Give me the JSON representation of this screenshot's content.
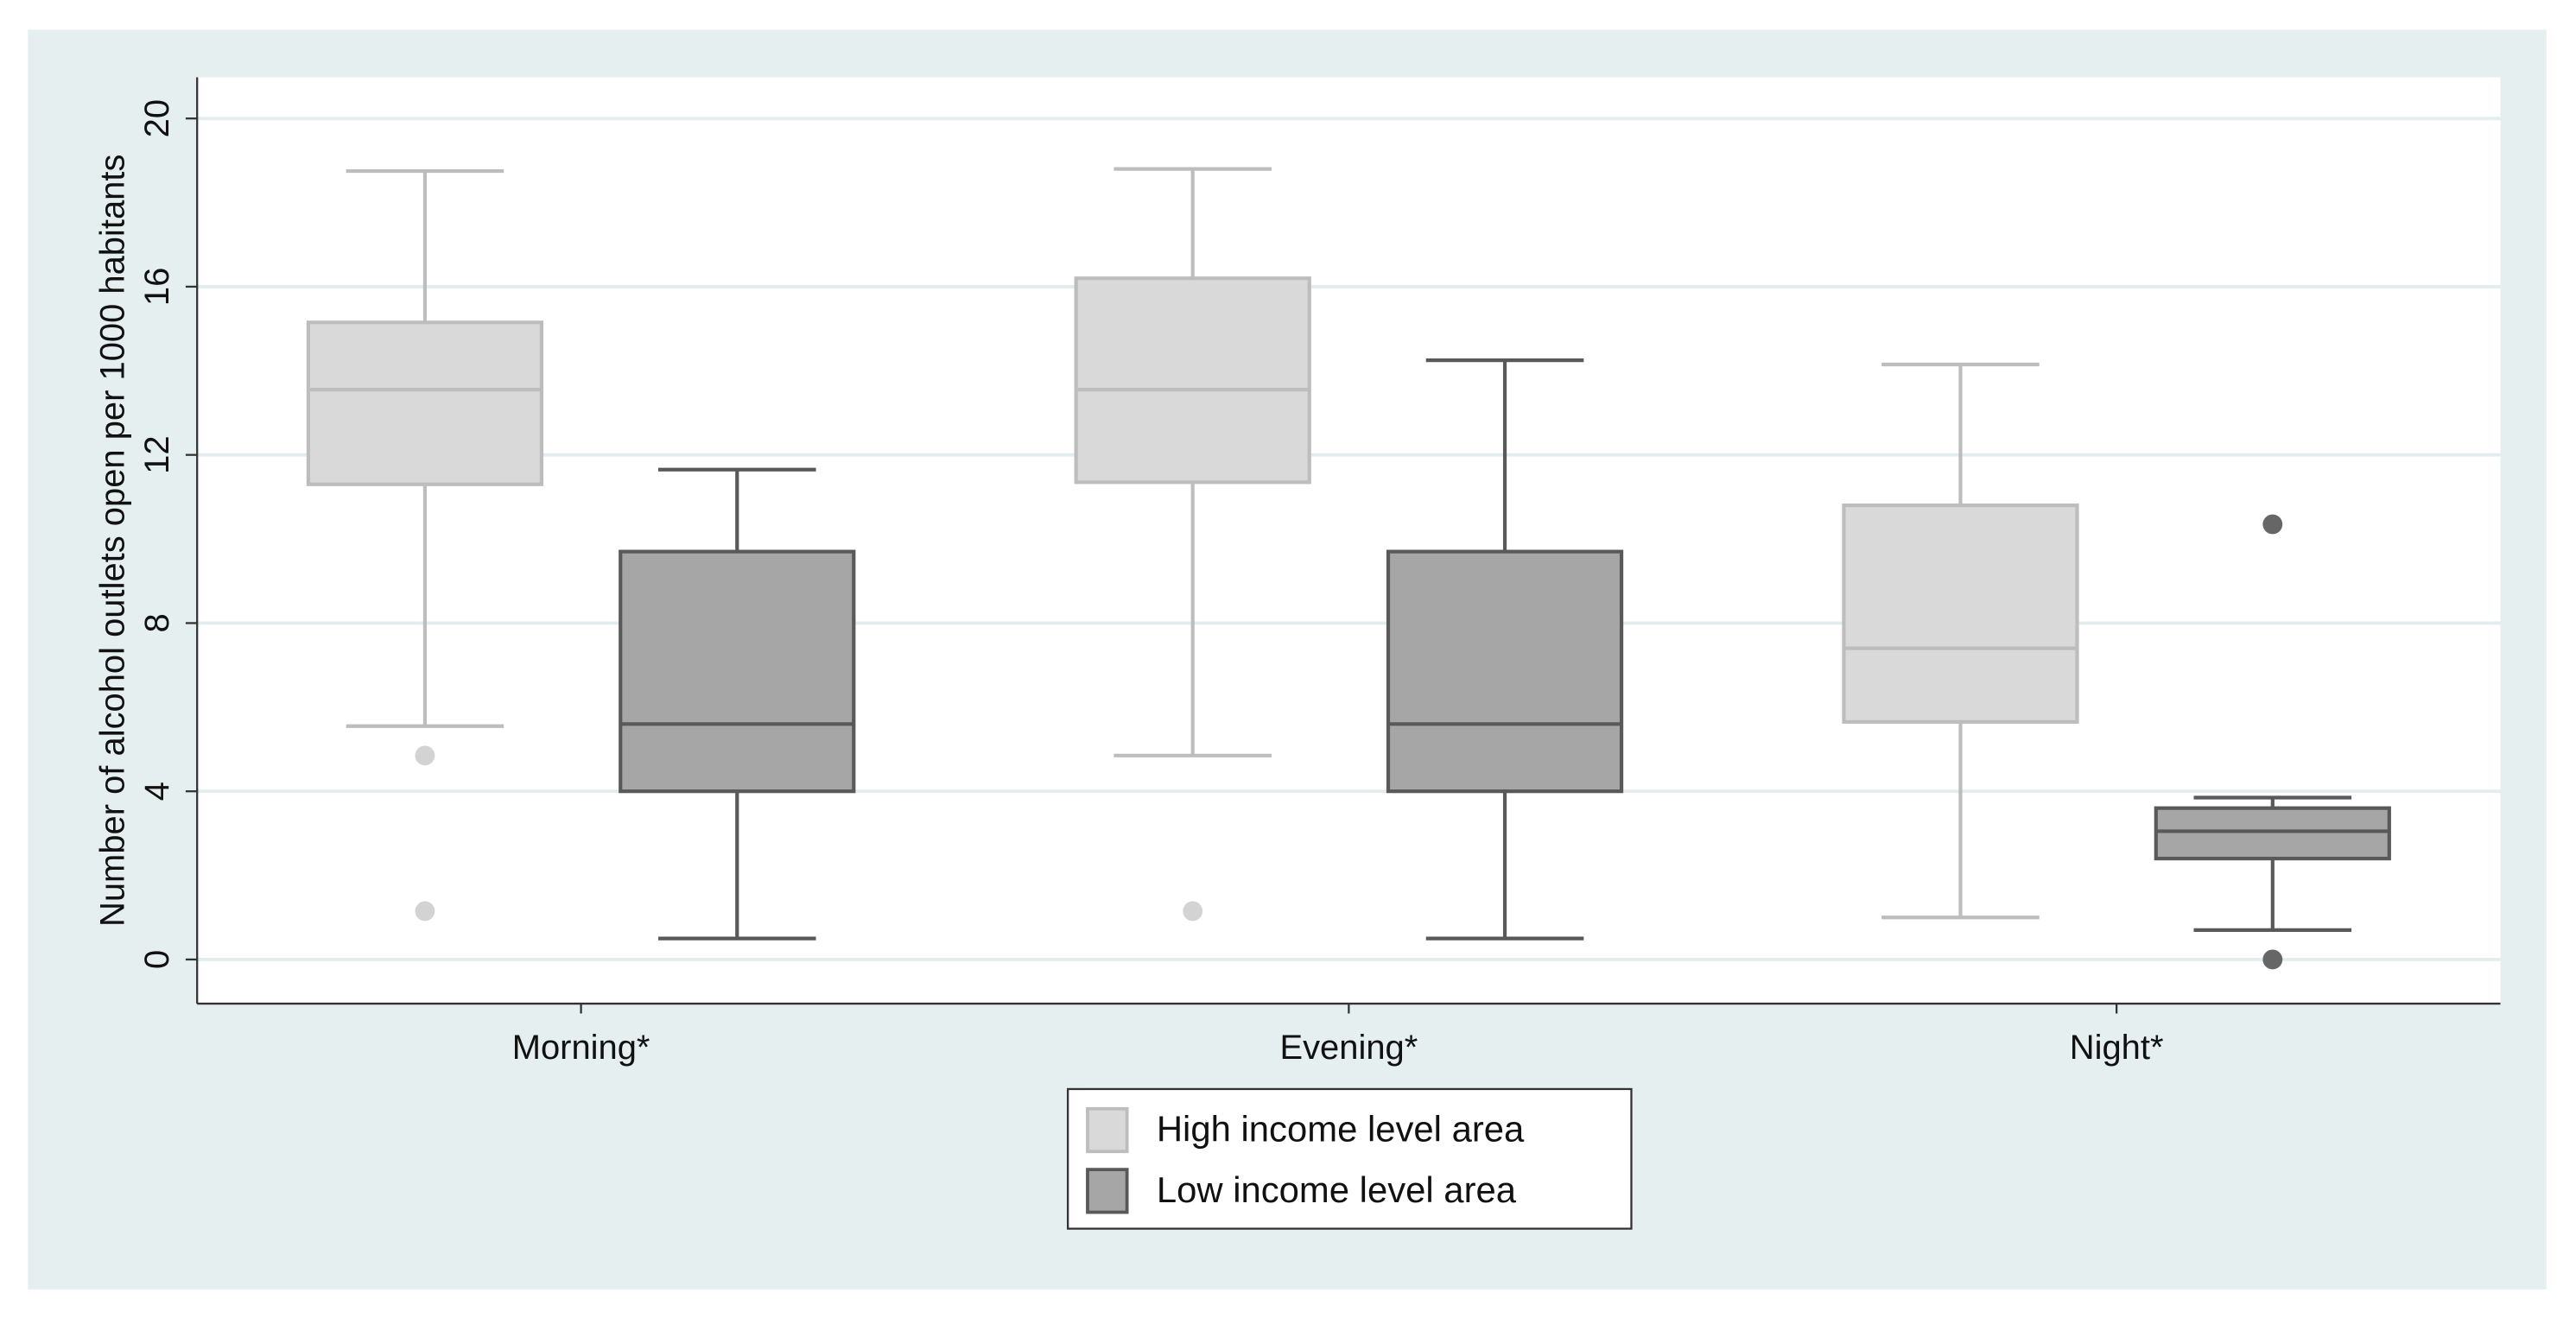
{
  "chart_data": {
    "type": "box",
    "y_label": "Number of alcohol outlets open per 1000 habitants",
    "categories": [
      "Morning*",
      "Evening*",
      "Night*"
    ],
    "ylim": [
      -1.05,
      20.98
    ],
    "yticks": [
      0,
      4,
      8,
      12,
      16,
      20
    ],
    "grid": true,
    "legend": "bottom",
    "series": [
      {
        "name": "High income level area",
        "color": "#d9d9d9",
        "edge_color": "#bdbdbd",
        "boxes": [
          {
            "whisker_low": 5.55,
            "q1": 11.3,
            "median": 13.55,
            "q3": 15.15,
            "whisker_high": 18.75,
            "outliers": [
              4.85,
              1.15
            ]
          },
          {
            "whisker_low": 4.85,
            "q1": 11.35,
            "median": 13.55,
            "q3": 16.2,
            "whisker_high": 18.8,
            "outliers": [
              1.15
            ]
          },
          {
            "whisker_low": 1.0,
            "q1": 5.65,
            "median": 7.4,
            "q3": 10.8,
            "whisker_high": 14.15,
            "outliers": []
          }
        ]
      },
      {
        "name": "Low income level area",
        "color": "#a6a6a6",
        "edge_color": "#595959",
        "boxes": [
          {
            "whisker_low": 0.5,
            "q1": 4.0,
            "median": 5.6,
            "q3": 9.7,
            "whisker_high": 11.65,
            "outliers": []
          },
          {
            "whisker_low": 0.5,
            "q1": 4.0,
            "median": 5.6,
            "q3": 9.7,
            "whisker_high": 14.25,
            "outliers": []
          },
          {
            "whisker_low": 0.7,
            "q1": 2.4,
            "median": 3.05,
            "q3": 3.6,
            "whisker_high": 3.85,
            "outliers": [
              10.35,
              0
            ]
          }
        ]
      }
    ]
  }
}
